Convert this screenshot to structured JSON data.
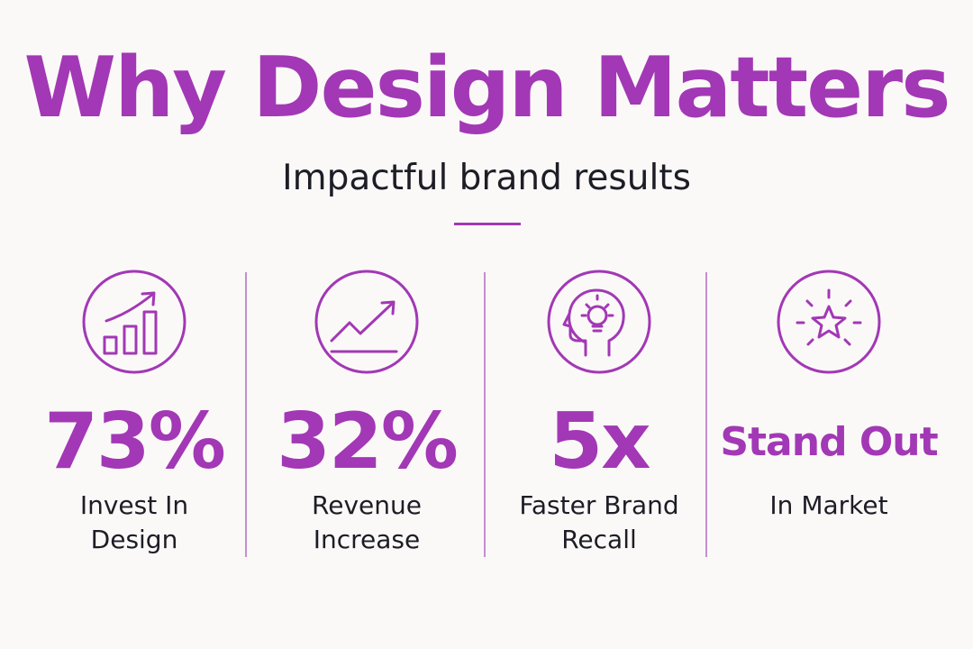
{
  "header": {
    "title": "Why Design Matters",
    "subtitle": "Impactful brand results"
  },
  "colors": {
    "accent": "#a238b5",
    "text": "#1d1d26",
    "background": "#fbf9f8"
  },
  "stats": [
    {
      "icon": "bar-chart-growth-icon",
      "value": "73%",
      "label_line1": "Invest In",
      "label_line2": "Design"
    },
    {
      "icon": "trend-up-icon",
      "value": "32%",
      "label_line1": "Revenue",
      "label_line2": "Increase"
    },
    {
      "icon": "head-lightbulb-icon",
      "value": "5x",
      "label_line1": "Faster Brand",
      "label_line2": "Recall"
    },
    {
      "icon": "star-burst-icon",
      "value": "Stand Out",
      "label_line1": "In Market",
      "label_line2": ""
    }
  ]
}
